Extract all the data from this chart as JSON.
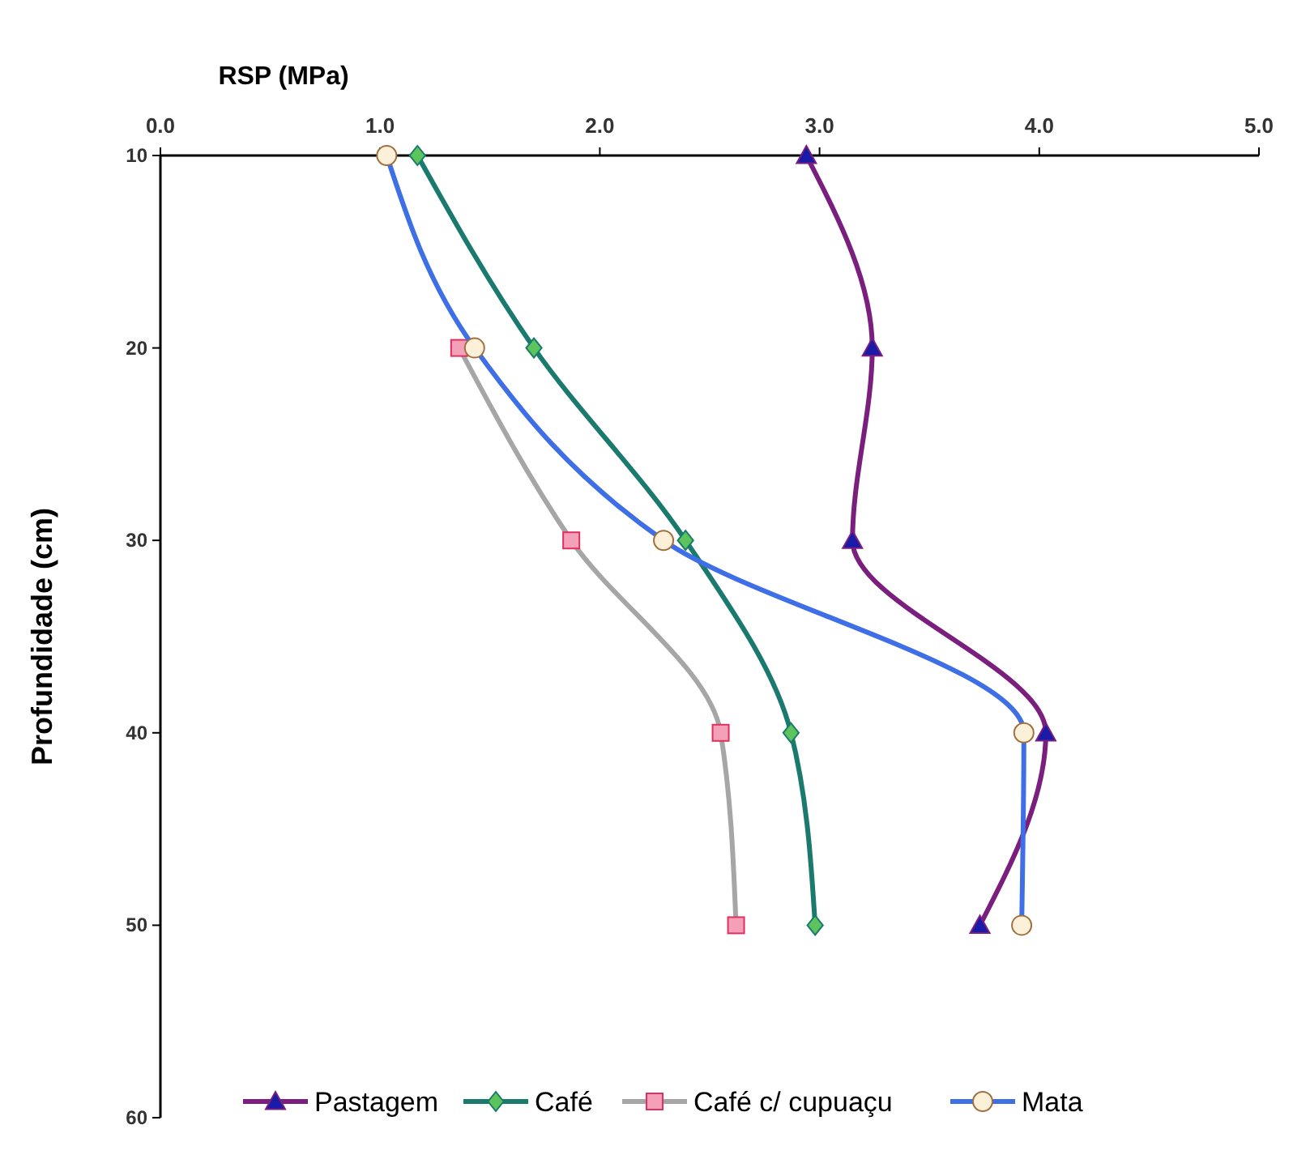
{
  "chart_data": {
    "type": "line",
    "xlabel": "RSP (MPa)",
    "ylabel": "Profundidade (cm)",
    "xlim": [
      0,
      5
    ],
    "xticks": [
      {
        "value": 0,
        "label": "0.0"
      },
      {
        "value": 1,
        "label": "1.0"
      },
      {
        "value": 2,
        "label": "2.0"
      },
      {
        "value": 3,
        "label": "3.0"
      },
      {
        "value": 4,
        "label": "4.0"
      },
      {
        "value": 5,
        "label": "5.0"
      }
    ],
    "ylim": [
      60,
      10
    ],
    "yticks": [
      10,
      20,
      30,
      40,
      50,
      60
    ],
    "grid": false,
    "legend": "bottom",
    "series": [
      {
        "name": "Pastagem",
        "color": "#7b1f7f",
        "marker": "triangle",
        "x": [
          2.94,
          3.24,
          3.15,
          4.03,
          3.73
        ],
        "values": [
          10,
          20,
          30,
          40,
          50
        ]
      },
      {
        "name": "Café",
        "color": "#1b7a6e",
        "marker": "diamond",
        "x": [
          1.17,
          1.7,
          2.39,
          2.87,
          2.98
        ],
        "values": [
          10,
          20,
          30,
          40,
          50
        ]
      },
      {
        "name": "Café c/ cupuaçu",
        "color": "#a6a6a6",
        "marker": "square",
        "x": [
          1.36,
          1.87,
          2.55,
          2.62
        ],
        "values": [
          20,
          30,
          40,
          50
        ]
      },
      {
        "name": "Mata",
        "color": "#3f6fe6",
        "marker": "circle",
        "x": [
          1.03,
          1.43,
          2.29,
          3.93,
          3.92
        ],
        "values": [
          10,
          20,
          30,
          40,
          50
        ]
      }
    ]
  }
}
